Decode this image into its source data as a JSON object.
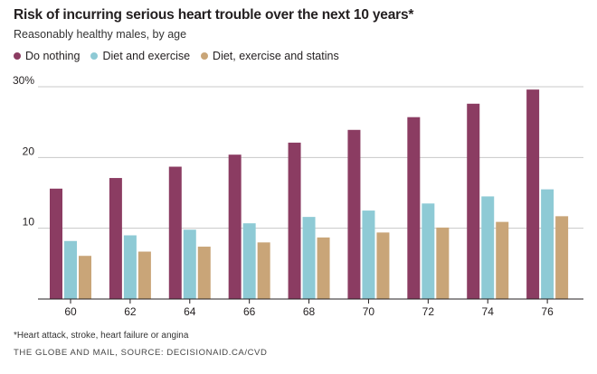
{
  "title": "Risk of incurring serious heart trouble over the next 10 years*",
  "subtitle": "Reasonably healthy males, by age",
  "footnote": "*Heart attack, stroke, heart failure or angina",
  "source": "THE GLOBE AND MAIL, SOURCE: DECISIONAID.CA/CVD",
  "legend": [
    {
      "label": "Do nothing",
      "color": "#8b3c62"
    },
    {
      "label": "Diet and exercise",
      "color": "#8ecad5"
    },
    {
      "label": "Diet, exercise and statins",
      "color": "#c9a578"
    }
  ],
  "chart_data": {
    "type": "bar",
    "categories": [
      "60",
      "62",
      "64",
      "66",
      "68",
      "70",
      "72",
      "74",
      "76"
    ],
    "series": [
      {
        "name": "Do nothing",
        "color": "#8b3c62",
        "values": [
          15.6,
          17.1,
          18.7,
          20.4,
          22.1,
          23.9,
          25.7,
          27.6,
          29.6
        ]
      },
      {
        "name": "Diet and exercise",
        "color": "#8ecad5",
        "values": [
          8.2,
          9.0,
          9.8,
          10.7,
          11.6,
          12.5,
          13.5,
          14.5,
          15.5
        ]
      },
      {
        "name": "Diet, exercise and statins",
        "color": "#c9a578",
        "values": [
          6.1,
          6.7,
          7.4,
          8.0,
          8.7,
          9.4,
          10.1,
          10.9,
          11.7
        ]
      }
    ],
    "ylim": [
      0,
      30
    ],
    "yticks": [
      "10",
      "20",
      "30%"
    ],
    "grid": true,
    "legend_position": "top-left"
  }
}
